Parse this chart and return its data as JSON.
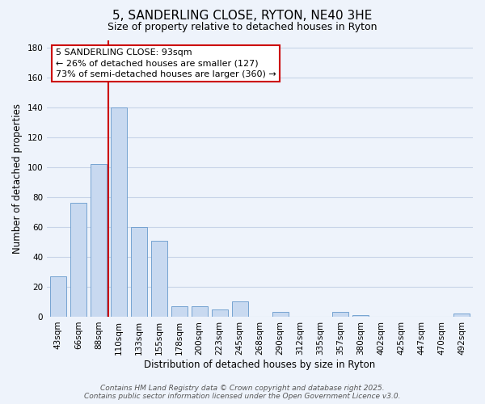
{
  "title": "5, SANDERLING CLOSE, RYTON, NE40 3HE",
  "subtitle": "Size of property relative to detached houses in Ryton",
  "xlabel": "Distribution of detached houses by size in Ryton",
  "ylabel": "Number of detached properties",
  "bar_color": "#c8d9f0",
  "bar_edge_color": "#6699cc",
  "vline_color": "#cc0000",
  "vline_x_index": 2.5,
  "categories": [
    "43sqm",
    "66sqm",
    "88sqm",
    "110sqm",
    "133sqm",
    "155sqm",
    "178sqm",
    "200sqm",
    "223sqm",
    "245sqm",
    "268sqm",
    "290sqm",
    "312sqm",
    "335sqm",
    "357sqm",
    "380sqm",
    "402sqm",
    "425sqm",
    "447sqm",
    "470sqm",
    "492sqm"
  ],
  "values": [
    27,
    76,
    102,
    140,
    60,
    51,
    7,
    7,
    5,
    10,
    0,
    3,
    0,
    0,
    3,
    1,
    0,
    0,
    0,
    0,
    2
  ],
  "ylim": [
    0,
    185
  ],
  "yticks": [
    0,
    20,
    40,
    60,
    80,
    100,
    120,
    140,
    160,
    180
  ],
  "ann_line1": "5 SANDERLING CLOSE: 93sqm",
  "ann_line2": "← 26% of detached houses are smaller (127)",
  "ann_line3": "73% of semi-detached houses are larger (360) →",
  "footer_line1": "Contains HM Land Registry data © Crown copyright and database right 2025.",
  "footer_line2": "Contains public sector information licensed under the Open Government Licence v3.0.",
  "background_color": "#eef3fb",
  "grid_color": "#c8d4e8",
  "title_fontsize": 11,
  "subtitle_fontsize": 9,
  "axis_label_fontsize": 8.5,
  "tick_fontsize": 7.5,
  "annotation_fontsize": 8,
  "footer_fontsize": 6.5
}
